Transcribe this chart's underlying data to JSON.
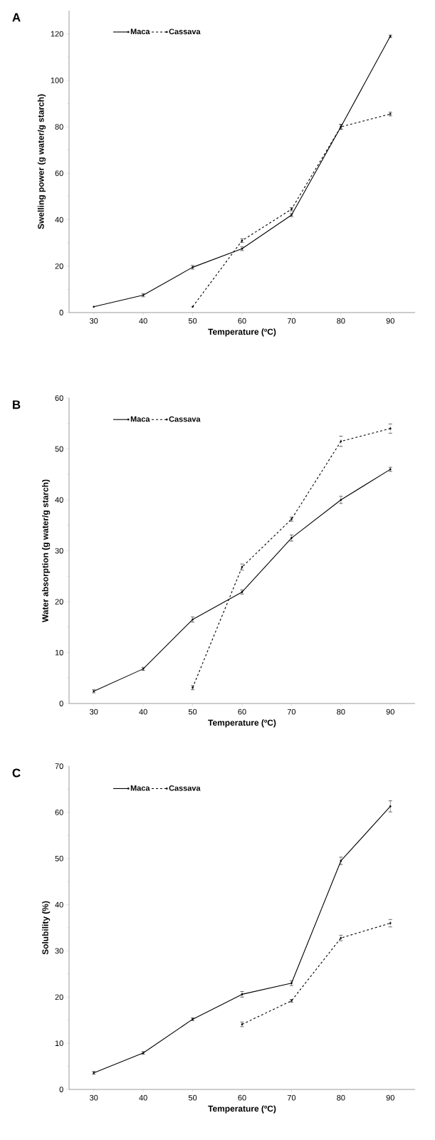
{
  "chart_data": [
    {
      "type": "line",
      "annotations": [
        "A"
      ],
      "xlabel": "Temperature (ºC)",
      "ylabel": "Swelling power (g water/g starch)",
      "xlim": [
        25,
        95
      ],
      "xticks": [
        30,
        40,
        50,
        60,
        70,
        80,
        90
      ],
      "ylim": [
        0,
        130
      ],
      "yticks": [
        0,
        20,
        40,
        60,
        80,
        100,
        120
      ],
      "legend": "top left",
      "marker": "circle",
      "x": [
        30,
        40,
        50,
        60,
        70,
        80,
        90
      ],
      "series": [
        {
          "name": "Maca",
          "color": "#000000",
          "line_style": "solid",
          "values": [
            2.5,
            7.5,
            19.5,
            27.5,
            42,
            80,
            119
          ],
          "errors": [
            null,
            0.7,
            0.8,
            0.8,
            0.7,
            1,
            0.5
          ]
        },
        {
          "name": "Cassava",
          "color": "#000000",
          "line_style": "dashed",
          "x": [
            50,
            60,
            70,
            80,
            90
          ],
          "values": [
            2.5,
            31,
            44.5,
            80,
            85.5
          ],
          "errors": [
            null,
            0.8,
            0.7,
            1,
            0.8
          ]
        }
      ]
    },
    {
      "type": "line",
      "annotations": [
        "B"
      ],
      "xlabel": "Temperature (ºC)",
      "ylabel": "Water absorption (g water/g starch)",
      "xlim": [
        25,
        95
      ],
      "xticks": [
        30,
        40,
        50,
        60,
        70,
        80,
        90
      ],
      "ylim": [
        0,
        60
      ],
      "yticks": [
        0,
        10,
        20,
        30,
        40,
        50,
        60
      ],
      "legend": "top left",
      "marker": "circle",
      "x": [
        30,
        40,
        50,
        60,
        70,
        80,
        90
      ],
      "series": [
        {
          "name": "Maca",
          "color": "#000000",
          "line_style": "solid",
          "values": [
            2.4,
            6.8,
            16.5,
            21.9,
            32.5,
            40,
            46
          ],
          "errors": [
            0.3,
            0.3,
            0.5,
            0.4,
            0.6,
            0.7,
            0.4
          ]
        },
        {
          "name": "Cassava",
          "color": "#000000",
          "line_style": "dashed",
          "x": [
            50,
            60,
            70,
            80,
            90
          ],
          "values": [
            3.1,
            26.8,
            36.2,
            51.5,
            54
          ],
          "errors": [
            0.4,
            0.6,
            0.4,
            1,
            0.9
          ]
        }
      ]
    },
    {
      "type": "line",
      "annotations": [
        "C"
      ],
      "xlabel": "Temperature (ºC)",
      "ylabel": "Solubility (%)",
      "xlim": [
        25,
        95
      ],
      "xticks": [
        30,
        40,
        50,
        60,
        70,
        80,
        90
      ],
      "ylim": [
        0,
        70
      ],
      "yticks": [
        0,
        10,
        20,
        30,
        40,
        50,
        60,
        70
      ],
      "legend": "top left",
      "marker": "circle",
      "x": [
        30,
        40,
        50,
        60,
        70,
        80,
        90
      ],
      "series": [
        {
          "name": "Maca",
          "color": "#000000",
          "line_style": "solid",
          "values": [
            3.6,
            7.9,
            15.2,
            20.6,
            23,
            49.5,
            61.3
          ],
          "errors": [
            0.3,
            0.3,
            0.3,
            0.6,
            0.5,
            0.8,
            1.2
          ]
        },
        {
          "name": "Cassava",
          "color": "#000000",
          "line_style": "dashed",
          "x": [
            60,
            70,
            80,
            90
          ],
          "values": [
            14.1,
            19.2,
            32.8,
            36
          ],
          "errors": [
            0.5,
            0.3,
            0.6,
            0.8
          ]
        }
      ]
    }
  ]
}
